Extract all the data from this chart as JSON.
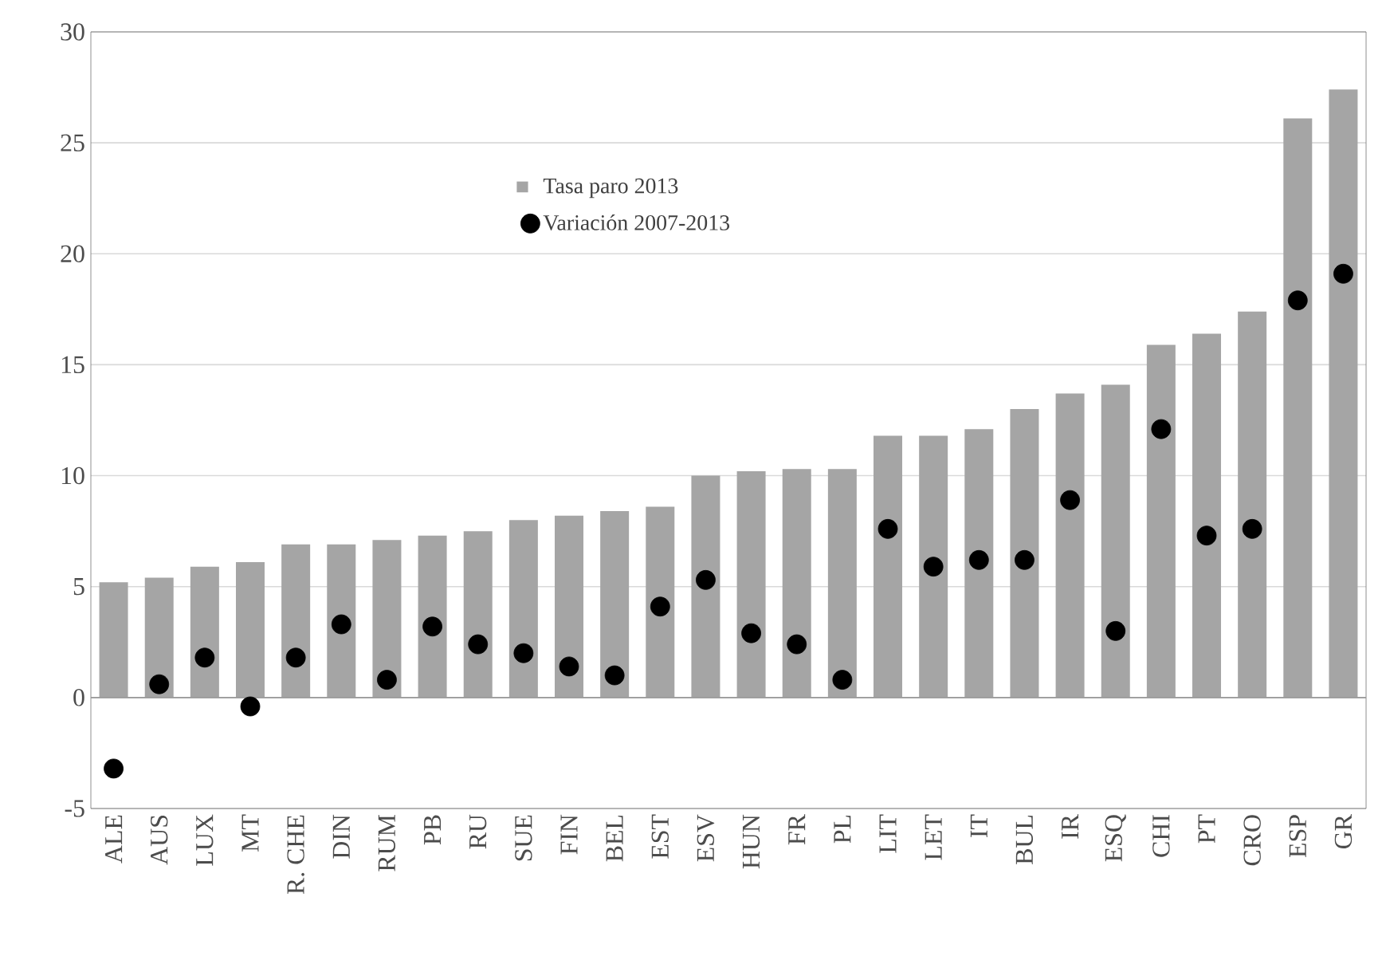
{
  "chart_data": {
    "type": "bar",
    "categories": [
      "ALE",
      "AUS",
      "LUX",
      "MT",
      "R. CHE",
      "DIN",
      "RUM",
      "PB",
      "RU",
      "SUE",
      "FIN",
      "BEL",
      "EST",
      "ESV",
      "HUN",
      "FR",
      "PL",
      "LIT",
      "LET",
      "IT",
      "BUL",
      "IR",
      "ESQ",
      "CHI",
      "PT",
      "CRO",
      "ESP",
      "GR"
    ],
    "series": [
      {
        "name": "Tasa paro 2013",
        "color": "#a5a5a5",
        "values": [
          5.2,
          5.4,
          5.9,
          6.1,
          6.9,
          6.9,
          7.1,
          7.3,
          7.5,
          8.0,
          8.2,
          8.4,
          8.6,
          10.0,
          10.2,
          10.3,
          10.3,
          11.8,
          11.8,
          12.1,
          13.0,
          13.7,
          14.1,
          15.9,
          16.4,
          17.4,
          26.1,
          27.4
        ]
      },
      {
        "name": "Variación 2007-2013",
        "type": "scatter",
        "color": "#000000",
        "values": [
          -3.2,
          0.6,
          1.8,
          -0.4,
          1.8,
          3.3,
          0.8,
          3.2,
          2.4,
          2.0,
          1.4,
          1.0,
          4.1,
          5.3,
          2.9,
          2.4,
          0.8,
          7.6,
          5.9,
          6.2,
          6.2,
          8.9,
          3.0,
          12.1,
          7.3,
          7.6,
          17.9,
          19.1
        ]
      }
    ],
    "ylim": [
      -5,
      30
    ],
    "yticks": [
      -5,
      0,
      5,
      10,
      15,
      20,
      25,
      30
    ],
    "grid": "y",
    "legend": "top left",
    "marker": "circle"
  }
}
